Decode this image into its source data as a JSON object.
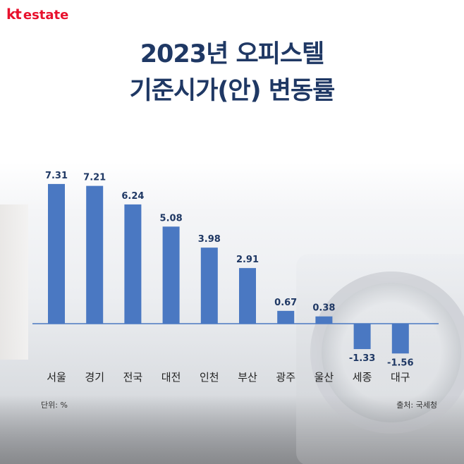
{
  "brand": {
    "kt": "kt",
    "estate": "estate",
    "color": "#e8112d"
  },
  "title": {
    "line1": "2023년 오피스텔",
    "line2": "기준시가(안) 변동률",
    "color": "#1f3864"
  },
  "unit_note": "단위: %",
  "source_note": "출처: 국세청",
  "chart_data": {
    "type": "bar",
    "categories": [
      "서울",
      "경기",
      "전국",
      "대전",
      "인천",
      "부산",
      "광주",
      "울산",
      "세종",
      "대구"
    ],
    "values": [
      7.31,
      7.21,
      6.24,
      5.08,
      3.98,
      2.91,
      0.67,
      0.38,
      -1.33,
      -1.56
    ],
    "value_labels": [
      "7.31",
      "7.21",
      "6.24",
      "5.08",
      "3.98",
      "2.91",
      "0.67",
      "0.38",
      "-1.33",
      "-1.56"
    ],
    "title": "",
    "xlabel": "",
    "ylabel": "",
    "ylim": [
      -1.56,
      7.31
    ],
    "bar_color": "#4a78c2",
    "baseline_color": "#4a78c2",
    "grid": false,
    "legend": "none"
  }
}
